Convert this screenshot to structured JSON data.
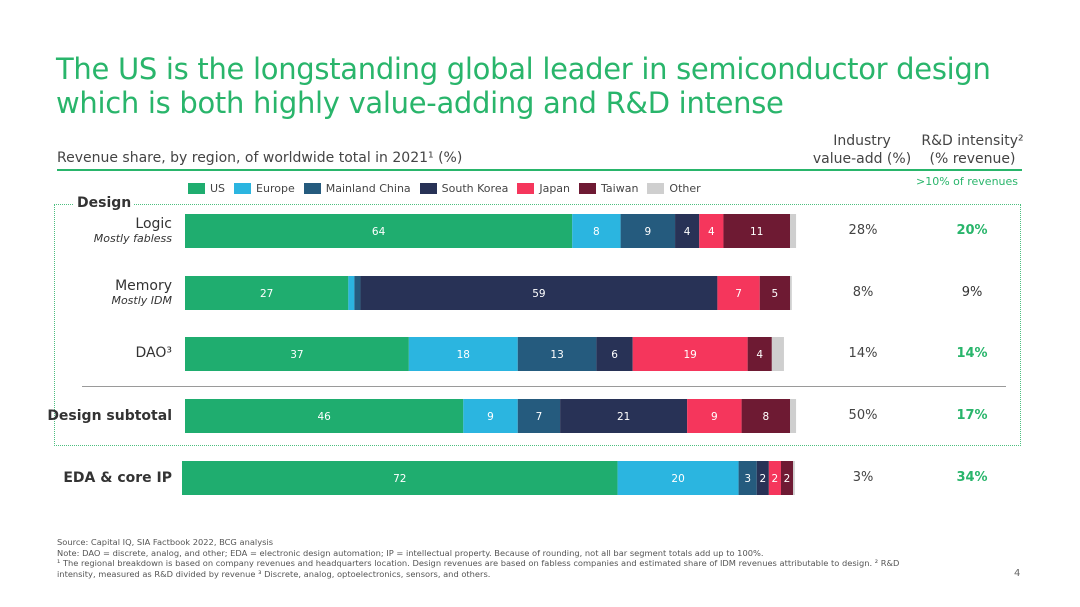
{
  "title_line1": "The US is the longstanding global leader in semiconductor design",
  "title_line2": "which is both highly value-adding and R&D intense",
  "subtitle": "Revenue share, by region, of worldwide total in 2021¹ (%)",
  "columns": {
    "value_add_line1": "Industry",
    "value_add_line2": "value-add (%)",
    "rd_line1": "R&D intensity²",
    "rd_line2": "(% revenue)",
    "rd_threshold": ">10% of revenues"
  },
  "design_group_label": "Design",
  "colors": {
    "US": "#1fad6f",
    "Europe": "#2bb5e0",
    "Mainland China": "#255b7e",
    "South Korea": "#283256",
    "Japan": "#f5365c",
    "Taiwan": "#6e1a33",
    "Other": "#cfcfcf",
    "accent_green": "#29b56b"
  },
  "chart_data": {
    "type": "bar",
    "orientation": "horizontal",
    "stacked": true,
    "categories": [
      "Logic",
      "Memory",
      "DAO³",
      "Design subtotal",
      "EDA & core IP"
    ],
    "category_sublabels": [
      "Mostly fabless",
      "Mostly IDM",
      "",
      "",
      ""
    ],
    "series": [
      {
        "name": "US",
        "values": [
          64,
          27,
          37,
          46,
          72
        ]
      },
      {
        "name": "Europe",
        "values": [
          8,
          1,
          18,
          9,
          20
        ]
      },
      {
        "name": "Mainland China",
        "values": [
          9,
          1,
          13,
          7,
          3
        ]
      },
      {
        "name": "South Korea",
        "values": [
          4,
          59,
          6,
          21,
          2
        ]
      },
      {
        "name": "Japan",
        "values": [
          4,
          7,
          19,
          9,
          2
        ]
      },
      {
        "name": "Taiwan",
        "values": [
          11,
          5,
          4,
          8,
          2
        ]
      },
      {
        "name": "Other",
        "values": [
          1,
          0.3,
          2,
          1,
          0.3
        ]
      }
    ],
    "label_threshold": 2,
    "industry_value_add": [
      "28%",
      "8%",
      "14%",
      "50%",
      "3%"
    ],
    "rd_intensity": [
      "20%",
      "9%",
      "14%",
      "17%",
      "34%"
    ],
    "rd_above_threshold": [
      true,
      false,
      true,
      true,
      true
    ],
    "legend_position": "top",
    "xlim": [
      0,
      100
    ]
  },
  "footnotes": {
    "source": "Source: Capital IQ, SIA Factbook 2022, BCG analysis",
    "note": "Note: DAO = discrete, analog, and other; EDA = electronic design automation; IP = intellectual property. Because of rounding, not all bar segment totals add up to 100%.",
    "fn1": "¹ The regional breakdown is based on company revenues and headquarters location. Design revenues are based on fabless companies and estimated share of IDM revenues attributable to design. ² R&D",
    "fn2": "intensity, measured as R&D divided by revenue  ³ Discrete, analog, optoelectronics, sensors, and others."
  },
  "page_number": "4"
}
